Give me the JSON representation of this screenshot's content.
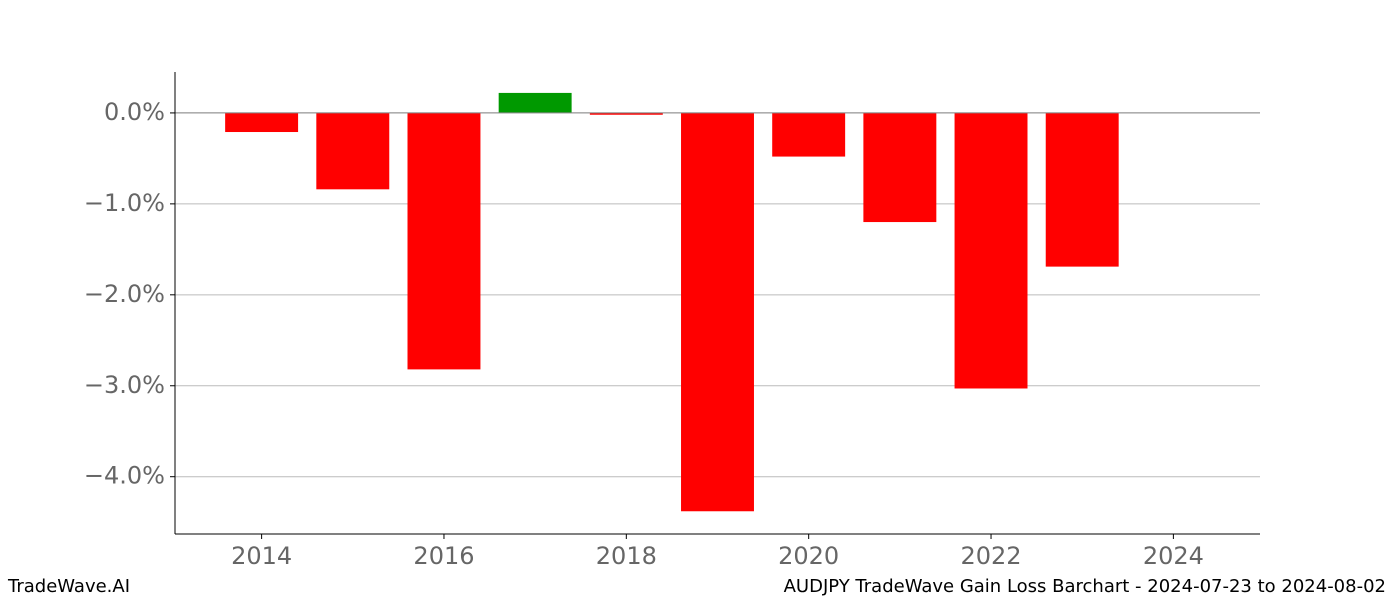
{
  "chart_data": {
    "type": "bar",
    "title": "AUDJPY TradeWave Gain Loss Barchart - 2024-07-23 to 2024-08-02",
    "brand": "TradeWave.AI",
    "x": [
      2014,
      2015,
      2016,
      2017,
      2018,
      2019,
      2020,
      2021,
      2022,
      2023
    ],
    "values": [
      -0.21,
      -0.84,
      -2.82,
      0.22,
      -0.02,
      -4.38,
      -0.48,
      -1.2,
      -3.03,
      -1.69
    ],
    "colors": [
      "#ff0000",
      "#ff0000",
      "#ff0000",
      "#009900",
      "#ff0000",
      "#ff0000",
      "#ff0000",
      "#ff0000",
      "#ff0000",
      "#ff0000"
    ],
    "xlim": [
      2013.05,
      2024.95
    ],
    "xticks": [
      2014,
      2016,
      2018,
      2020,
      2022,
      2024
    ],
    "ylim": [
      -4.63,
      0.45
    ],
    "yticks": [
      {
        "value": 0,
        "label": "0.0%"
      },
      {
        "value": -1,
        "label": "−1.0%"
      },
      {
        "value": -2,
        "label": "−2.0%"
      },
      {
        "value": -3,
        "label": "−3.0%"
      },
      {
        "value": -4,
        "label": "−4.0%"
      }
    ],
    "grid": true
  }
}
